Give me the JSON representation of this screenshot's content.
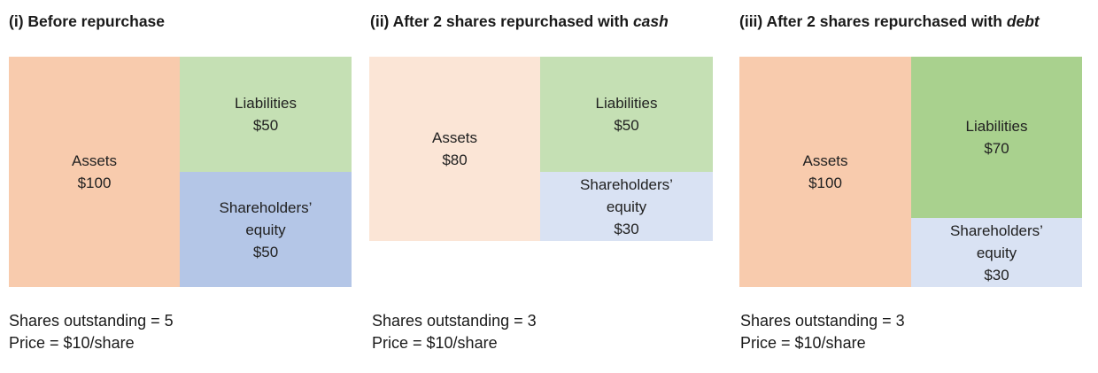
{
  "figure": {
    "panels": [
      {
        "id": "before-repurchase",
        "title": "(i) Before repurchase",
        "title_emphasis": "",
        "assets": {
          "label": "Assets",
          "value": "$100",
          "color": "#F8CBAD"
        },
        "liabilities": {
          "label": "Liabilities",
          "value": "$50",
          "color": "#C5E0B4"
        },
        "equity": {
          "line1": "Shareholders’",
          "line2": "equity",
          "value": "$50",
          "color": "#B4C6E7"
        },
        "shares_line": "Shares outstanding = 5",
        "price_line": "Price = $10/share"
      },
      {
        "id": "after-repurchase-cash",
        "title": "(ii) After 2 shares repurchased with ",
        "title_emphasis": "cash",
        "assets": {
          "label": "Assets",
          "value": "$80",
          "color": "#FBE5D6"
        },
        "liabilities": {
          "label": "Liabilities",
          "value": "$50",
          "color": "#C5E0B4"
        },
        "equity": {
          "line1": "Shareholders’",
          "line2": "equity",
          "value": "$30",
          "color": "#D9E2F3"
        },
        "shares_line": "Shares outstanding = 3",
        "price_line": "Price = $10/share"
      },
      {
        "id": "after-repurchase-debt",
        "title": "(iii) After 2 shares repurchased with ",
        "title_emphasis": "debt",
        "assets": {
          "label": "Assets",
          "value": "$100",
          "color": "#F8CBAD"
        },
        "liabilities": {
          "label": "Liabilities",
          "value": "$70",
          "color": "#A9D18E"
        },
        "equity": {
          "line1": "Shareholders’",
          "line2": "equity",
          "value": "$30",
          "color": "#D9E2F3"
        },
        "shares_line": "Shares outstanding = 3",
        "price_line": "Price = $10/share"
      }
    ]
  }
}
